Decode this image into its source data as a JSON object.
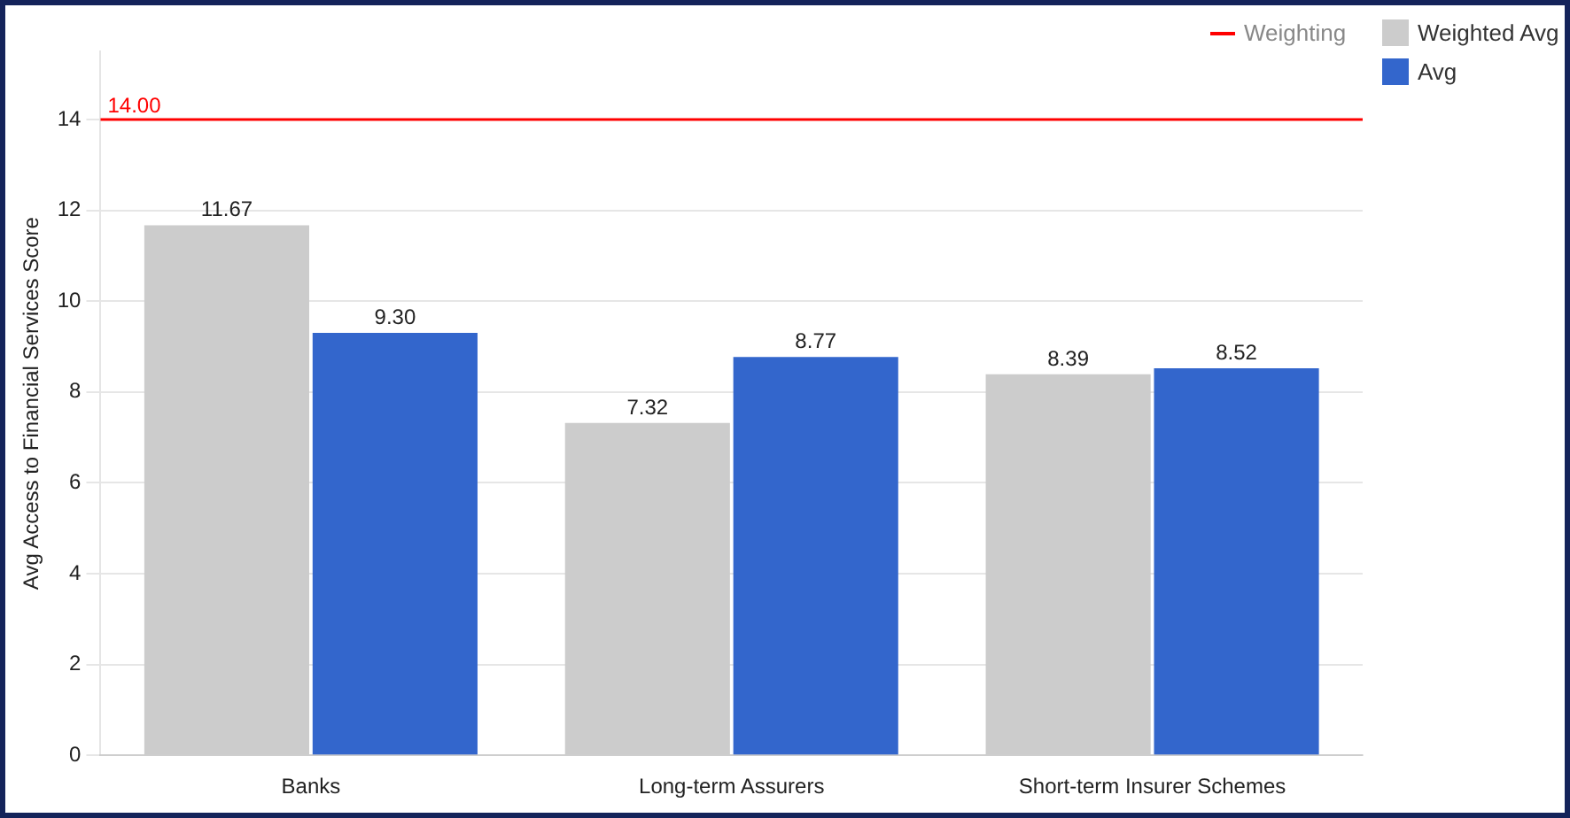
{
  "chart_data": {
    "type": "bar",
    "ylabel": "Avg Access to Financial Services Score",
    "categories": [
      "Banks",
      "Long-term Assurers",
      "Short-term Insurer Schemes"
    ],
    "series": [
      {
        "name": "Weighted Avg",
        "color": "#cccccc",
        "values": [
          11.67,
          7.32,
          8.39
        ],
        "value_labels": [
          "11.67",
          "7.32",
          "8.39"
        ]
      },
      {
        "name": "Avg",
        "color": "#3366cc",
        "values": [
          9.3,
          8.77,
          8.52
        ],
        "value_labels": [
          "9.30",
          "8.77",
          "8.52"
        ]
      }
    ],
    "ref_lines": [
      {
        "axis": "y",
        "value": 14,
        "label": "Weighting",
        "color": "#ff0000"
      }
    ],
    "annotations": [
      {
        "text": "14.00",
        "y": 14
      }
    ],
    "ylim": [
      0,
      15.5
    ],
    "yticks": [
      0,
      2,
      4,
      6,
      8,
      10,
      12,
      14
    ],
    "grid": "y",
    "legend": "top right"
  }
}
